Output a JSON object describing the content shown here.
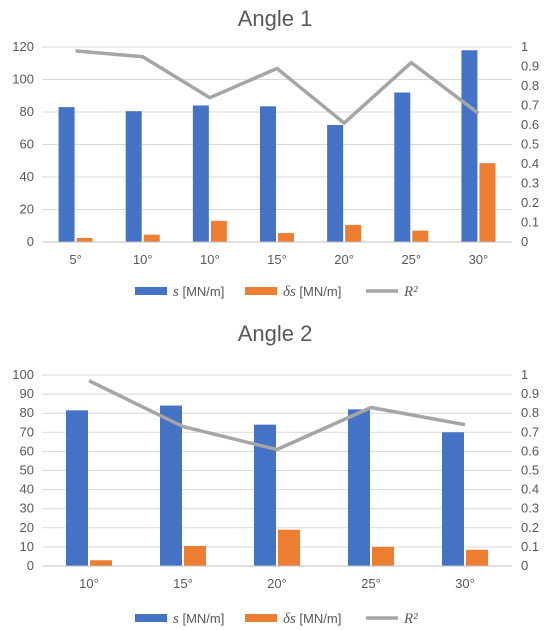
{
  "chart_data": [
    {
      "type": "bar",
      "title": "Angle 1",
      "categories": [
        "5°",
        "10°",
        "10°",
        "15°",
        "20°",
        "25°",
        "30°"
      ],
      "series": [
        {
          "name_symbol": "s",
          "name_unit": " [MN/m]",
          "type": "bar",
          "axis": "left",
          "color": "#4472C4",
          "values": [
            83,
            80.5,
            84,
            83.5,
            72,
            92,
            118
          ]
        },
        {
          "name_symbol": "δs",
          "name_unit": " [MN/m]",
          "type": "bar",
          "axis": "left",
          "color": "#ED7D31",
          "values": [
            2.5,
            4.5,
            13,
            5.5,
            10.5,
            7,
            48.5
          ]
        },
        {
          "name_symbol": "R²",
          "name_unit": "",
          "type": "line",
          "axis": "right",
          "color": "#A5A5A5",
          "values": [
            0.98,
            0.95,
            0.74,
            0.89,
            0.61,
            0.92,
            0.66
          ]
        }
      ],
      "ylim": [
        0,
        120
      ],
      "yticks": [
        0,
        20,
        40,
        60,
        80,
        100,
        120
      ],
      "y2lim": [
        0,
        1
      ],
      "y2ticks": [
        "0",
        "0.1",
        "0.2",
        "0.3",
        "0.4",
        "0.5",
        "0.6",
        "0.7",
        "0.8",
        "0.9",
        "1"
      ],
      "grid": true,
      "legend": "bottom"
    },
    {
      "type": "bar",
      "title": "Angle 2",
      "categories": [
        "10°",
        "15°",
        "20°",
        "25°",
        "30°"
      ],
      "series": [
        {
          "name_symbol": "s",
          "name_unit": " [MN/m]",
          "type": "bar",
          "axis": "left",
          "color": "#4472C4",
          "values": [
            81.5,
            84,
            74,
            82,
            70
          ]
        },
        {
          "name_symbol": "δs",
          "name_unit": " [MN/m]",
          "type": "bar",
          "axis": "left",
          "color": "#ED7D31",
          "values": [
            3,
            10.5,
            19,
            10,
            8.5
          ]
        },
        {
          "name_symbol": "R²",
          "name_unit": "",
          "type": "line",
          "axis": "right",
          "color": "#A5A5A5",
          "values": [
            0.97,
            0.73,
            0.61,
            0.83,
            0.74
          ]
        }
      ],
      "ylim": [
        0,
        100
      ],
      "yticks": [
        0,
        10,
        20,
        30,
        40,
        50,
        60,
        70,
        80,
        90,
        100
      ],
      "y2lim": [
        0,
        1
      ],
      "y2ticks": [
        "0",
        "0.1",
        "0.2",
        "0.3",
        "0.4",
        "0.5",
        "0.6",
        "0.7",
        "0.8",
        "0.9",
        "1"
      ],
      "grid": true,
      "legend": "bottom"
    }
  ]
}
